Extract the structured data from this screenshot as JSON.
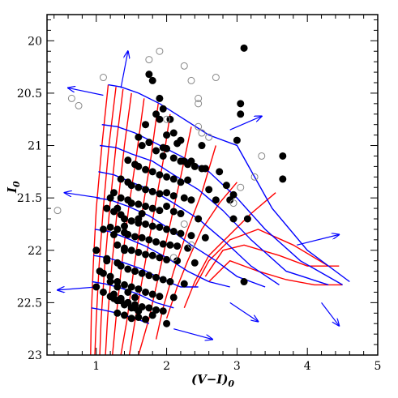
{
  "chart_data": {
    "type": "scatter",
    "title": "",
    "xlabel": "(V−I)",
    "xlabel_sub": "0",
    "ylabel": "I",
    "ylabel_sub": "0",
    "xlim": [
      0.3,
      5.0
    ],
    "ylim": [
      23.0,
      19.75
    ],
    "y_inverted": true,
    "grid": false,
    "x_ticks": [
      1,
      2,
      3,
      4,
      5
    ],
    "x_tick_labels": [
      "1",
      "2",
      "3",
      "4",
      "5"
    ],
    "y_ticks": [
      20,
      20.5,
      21,
      21.5,
      22,
      22.5,
      23
    ],
    "y_tick_labels": [
      "20",
      "20.5",
      "21",
      "21.5",
      "22",
      "22.5",
      "23"
    ],
    "colors": {
      "filled": "#000000",
      "open": "#888888",
      "isochrone": "#ff0000",
      "isomass": "#0000ff",
      "arrow": "#0000ff"
    },
    "series": [
      {
        "marker": "filled-circle",
        "x": [
          1.75,
          1.8,
          1.9,
          1.95,
          2.05,
          2.1,
          1.7,
          1.85,
          2.0,
          2.15,
          2.2,
          1.6,
          1.65,
          1.75,
          1.85,
          1.95,
          2.0,
          2.1,
          2.2,
          2.3,
          2.4,
          2.5,
          1.45,
          1.55,
          1.6,
          1.7,
          1.8,
          1.9,
          2.0,
          2.1,
          2.2,
          2.3,
          1.35,
          1.45,
          1.5,
          1.6,
          1.7,
          1.8,
          1.9,
          2.0,
          2.1,
          2.25,
          2.35,
          1.25,
          1.35,
          1.45,
          1.5,
          1.6,
          1.7,
          1.8,
          1.9,
          2.0,
          2.1,
          2.2,
          2.45,
          1.15,
          1.25,
          1.35,
          1.4,
          1.5,
          1.6,
          1.7,
          1.8,
          1.9,
          2.0,
          2.1,
          2.2,
          2.35,
          2.55,
          1.2,
          1.3,
          1.4,
          1.45,
          1.55,
          1.65,
          1.75,
          1.85,
          1.95,
          2.05,
          2.15,
          2.3,
          1.1,
          1.25,
          1.3,
          1.4,
          1.5,
          1.6,
          1.7,
          1.8,
          1.9,
          2.0,
          2.15,
          2.4,
          1.0,
          1.15,
          1.3,
          1.35,
          1.45,
          1.55,
          1.65,
          1.75,
          1.85,
          1.95,
          2.05,
          2.25,
          1.1,
          1.2,
          1.3,
          1.4,
          1.5,
          1.6,
          1.7,
          1.8,
          1.9,
          2.1,
          1.25,
          1.35,
          1.45,
          1.55,
          1.65,
          1.75,
          1.85,
          1.95,
          1.3,
          1.4,
          1.5,
          1.6,
          1.7,
          2.0,
          1.2,
          1.3,
          1.4,
          1.5,
          1.6,
          1.8,
          1.1,
          1.25,
          1.35,
          1.45,
          1.55,
          1.0,
          1.2,
          1.3,
          1.45,
          1.55,
          1.05,
          1.15,
          1.4,
          3.1,
          3.05,
          3.05,
          3.65,
          3.65,
          2.9,
          2.95,
          2.6,
          2.7,
          2.85,
          3.15,
          2.5,
          1.9,
          3.0,
          2.75,
          2.35,
          1.95,
          1.4,
          1.6,
          1.2,
          1.3,
          1.65,
          2.55,
          2.95,
          3.1,
          2.25
        ],
        "y": [
          20.32,
          20.38,
          20.55,
          20.65,
          20.75,
          20.88,
          20.8,
          20.7,
          20.9,
          20.98,
          20.95,
          20.92,
          21.0,
          20.97,
          21.05,
          21.1,
          21.03,
          21.12,
          21.15,
          21.18,
          21.2,
          21.22,
          21.14,
          21.18,
          21.2,
          21.23,
          21.25,
          21.28,
          21.3,
          21.32,
          21.35,
          21.33,
          21.32,
          21.35,
          21.38,
          21.4,
          21.42,
          21.44,
          21.46,
          21.45,
          21.48,
          21.5,
          21.52,
          21.45,
          21.5,
          21.52,
          21.55,
          21.56,
          21.58,
          21.6,
          21.62,
          21.58,
          21.63,
          21.65,
          21.7,
          21.6,
          21.63,
          21.66,
          21.7,
          21.72,
          21.74,
          21.75,
          21.77,
          21.78,
          21.8,
          21.82,
          21.84,
          21.86,
          21.88,
          21.78,
          21.8,
          21.83,
          21.85,
          21.87,
          21.88,
          21.9,
          21.92,
          21.94,
          21.95,
          21.96,
          21.98,
          21.8,
          21.85,
          21.95,
          21.98,
          22.0,
          22.02,
          22.04,
          22.05,
          22.07,
          22.09,
          22.1,
          22.12,
          22.0,
          22.08,
          22.12,
          22.15,
          22.18,
          22.2,
          22.22,
          22.24,
          22.26,
          22.28,
          22.3,
          22.32,
          22.22,
          22.25,
          22.3,
          22.33,
          22.35,
          22.37,
          22.4,
          22.42,
          22.44,
          22.45,
          22.46,
          22.48,
          22.5,
          22.52,
          22.54,
          22.55,
          22.57,
          22.58,
          22.6,
          22.62,
          22.65,
          22.64,
          22.66,
          22.7,
          22.44,
          22.48,
          22.52,
          22.55,
          22.58,
          22.62,
          22.4,
          22.42,
          22.46,
          22.5,
          22.55,
          22.35,
          22.3,
          22.35,
          22.4,
          22.45,
          22.2,
          22.1,
          22.0,
          20.07,
          20.6,
          20.7,
          21.1,
          21.32,
          21.52,
          21.47,
          21.42,
          21.52,
          21.38,
          21.7,
          21.0,
          20.75,
          20.95,
          21.25,
          21.15,
          21.02,
          21.77,
          21.7,
          21.5,
          21.6,
          21.65,
          21.22,
          21.7,
          22.3,
          21.15
        ]
      },
      {
        "marker": "open-circle",
        "x": [
          0.45,
          0.65,
          0.75,
          1.1,
          1.75,
          1.9,
          2.25,
          2.35,
          2.45,
          2.45,
          2.7,
          2.45,
          2.5,
          2.6,
          3.35,
          3.25,
          3.05,
          2.95,
          2.0,
          2.35,
          2.1,
          2.25
        ],
        "y": [
          21.62,
          20.55,
          20.62,
          20.35,
          20.18,
          20.1,
          20.24,
          20.38,
          20.55,
          20.6,
          20.35,
          20.82,
          20.88,
          20.92,
          21.1,
          21.3,
          21.4,
          21.55,
          20.75,
          21.95,
          22.07,
          21.75
        ]
      }
    ],
    "isochrones": [
      {
        "x": [
          1.17,
          1.08,
          1.0,
          0.96,
          0.93,
          0.92
        ],
        "y": [
          20.42,
          21.0,
          21.6,
          22.1,
          22.6,
          23.0
        ]
      },
      {
        "x": [
          1.28,
          1.18,
          1.1,
          1.04,
          1.0,
          0.98
        ],
        "y": [
          20.44,
          21.0,
          21.6,
          22.15,
          22.65,
          23.0
        ]
      },
      {
        "x": [
          1.38,
          1.28,
          1.19,
          1.12,
          1.07,
          1.05
        ],
        "y": [
          20.46,
          21.0,
          21.6,
          22.15,
          22.65,
          23.0
        ]
      },
      {
        "x": [
          1.5,
          1.4,
          1.3,
          1.22,
          1.16,
          1.13
        ],
        "y": [
          20.5,
          21.0,
          21.6,
          22.15,
          22.65,
          23.0
        ]
      },
      {
        "x": [
          1.68,
          1.58,
          1.46,
          1.36,
          1.28,
          1.23
        ],
        "y": [
          20.55,
          21.05,
          21.6,
          22.15,
          22.65,
          23.0
        ]
      },
      {
        "x": [
          1.88,
          1.78,
          1.66,
          1.54,
          1.44,
          1.35
        ],
        "y": [
          20.6,
          21.1,
          21.6,
          22.15,
          22.65,
          23.0
        ]
      },
      {
        "x": [
          2.05,
          1.95,
          1.83,
          1.7,
          1.57,
          1.47
        ],
        "y": [
          20.7,
          21.15,
          21.6,
          22.1,
          22.6,
          23.0
        ]
      },
      {
        "x": [
          2.35,
          2.2,
          2.05,
          1.9,
          1.75,
          1.6
        ],
        "y": [
          20.82,
          21.3,
          21.75,
          22.2,
          22.65,
          23.0
        ]
      },
      {
        "x": [
          2.7,
          2.5,
          2.3,
          2.1,
          1.95,
          1.85
        ],
        "y": [
          21.0,
          21.45,
          21.8,
          22.2,
          22.55,
          22.85
        ]
      },
      {
        "x": [
          3.0,
          2.75,
          2.5,
          2.3,
          2.15,
          2.0
        ],
        "y": [
          21.35,
          21.55,
          21.8,
          22.1,
          22.35,
          22.65
        ]
      },
      {
        "x": [
          3.55,
          3.2,
          2.9,
          2.6,
          2.4,
          2.25
        ],
        "y": [
          21.45,
          21.65,
          21.85,
          22.05,
          22.3,
          22.55
        ]
      },
      {
        "x": [
          4.3,
          3.8,
          3.3,
          2.9,
          2.6,
          2.4
        ],
        "y": [
          22.15,
          21.95,
          21.8,
          21.9,
          22.1,
          22.35
        ]
      },
      {
        "x": [
          4.45,
          4.0,
          3.6,
          3.1,
          2.8,
          2.55
        ],
        "y": [
          22.15,
          22.15,
          22.05,
          21.95,
          22.0,
          22.25
        ]
      },
      {
        "x": [
          4.5,
          4.1,
          3.7,
          3.3,
          2.9,
          2.6
        ],
        "y": [
          22.33,
          22.33,
          22.28,
          22.2,
          22.1,
          22.3
        ]
      }
    ],
    "isomass": [
      {
        "x": [
          1.17,
          1.35,
          1.6,
          1.9,
          2.25,
          2.6,
          3.0,
          3.5,
          4.0,
          4.6
        ],
        "y": [
          20.42,
          20.44,
          20.5,
          20.6,
          20.75,
          20.9,
          21.0,
          21.6,
          22.0,
          22.3
        ]
      },
      {
        "x": [
          1.08,
          1.3,
          1.55,
          1.85,
          2.2,
          2.6,
          3.0,
          3.4,
          3.9,
          4.5
        ],
        "y": [
          20.8,
          20.82,
          20.88,
          20.98,
          21.1,
          21.25,
          21.5,
          21.8,
          22.1,
          22.33
        ]
      },
      {
        "x": [
          1.05,
          1.28,
          1.5,
          1.8,
          2.1,
          2.45,
          2.8,
          3.2,
          3.7,
          4.3
        ],
        "y": [
          21.0,
          21.02,
          21.08,
          21.15,
          21.28,
          21.42,
          21.62,
          21.9,
          22.2,
          22.33
        ]
      },
      {
        "x": [
          1.03,
          1.25,
          1.5,
          1.8,
          2.1,
          2.45,
          2.8,
          3.2,
          3.6
        ],
        "y": [
          21.25,
          21.28,
          21.35,
          21.43,
          21.55,
          21.7,
          21.9,
          22.15,
          22.33
        ]
      },
      {
        "x": [
          1.0,
          1.2,
          1.45,
          1.75,
          2.05,
          2.35,
          2.7,
          3.0,
          3.4
        ],
        "y": [
          21.5,
          21.52,
          21.58,
          21.67,
          21.8,
          21.95,
          22.1,
          22.25,
          22.35
        ]
      },
      {
        "x": [
          0.98,
          1.18,
          1.42,
          1.7,
          2.0,
          2.3,
          2.6,
          2.9
        ],
        "y": [
          21.8,
          21.82,
          21.88,
          21.96,
          22.07,
          22.2,
          22.3,
          22.35
        ]
      },
      {
        "x": [
          0.96,
          1.15,
          1.4,
          1.65,
          1.95,
          2.2,
          2.45
        ],
        "y": [
          22.05,
          22.07,
          22.12,
          22.18,
          22.28,
          22.35,
          22.35
        ]
      },
      {
        "x": [
          0.94,
          1.12,
          1.35,
          1.6,
          1.85,
          2.1
        ],
        "y": [
          22.3,
          22.32,
          22.36,
          22.42,
          22.5,
          22.55
        ]
      },
      {
        "x": [
          0.93,
          1.1,
          1.3,
          1.55,
          1.75
        ],
        "y": [
          22.55,
          22.57,
          22.6,
          22.65,
          22.7
        ]
      }
    ],
    "arrows": [
      {
        "x1": 1.35,
        "y1": 20.45,
        "x2": 1.45,
        "y2": 20.1
      },
      {
        "x1": 1.1,
        "y1": 20.52,
        "x2": 0.6,
        "y2": 20.45
      },
      {
        "x1": 1.05,
        "y1": 21.5,
        "x2": 0.55,
        "y2": 21.45
      },
      {
        "x1": 2.9,
        "y1": 20.85,
        "x2": 3.35,
        "y2": 20.72
      },
      {
        "x1": 3.85,
        "y1": 21.95,
        "x2": 4.45,
        "y2": 21.85
      },
      {
        "x1": 1.0,
        "y1": 22.35,
        "x2": 0.45,
        "y2": 22.38
      },
      {
        "x1": 2.9,
        "y1": 22.5,
        "x2": 3.3,
        "y2": 22.68
      },
      {
        "x1": 2.1,
        "y1": 22.75,
        "x2": 2.65,
        "y2": 22.85
      },
      {
        "x1": 4.2,
        "y1": 22.5,
        "x2": 4.45,
        "y2": 22.72
      }
    ]
  }
}
